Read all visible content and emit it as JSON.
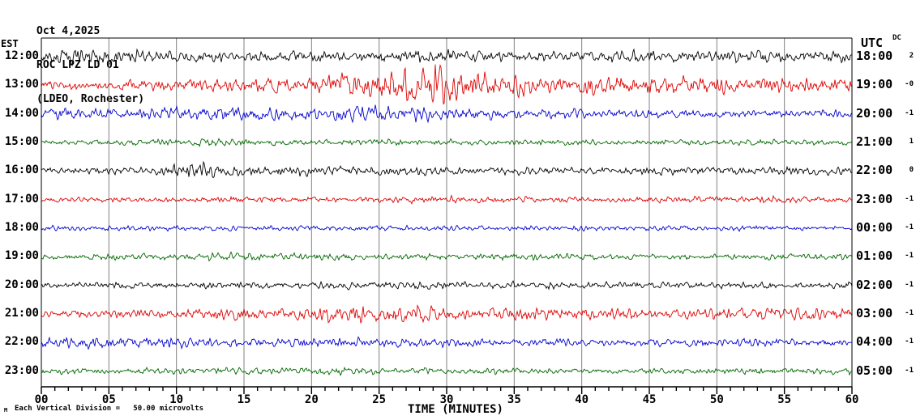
{
  "header": {
    "date": "Oct 4,2025",
    "station": "ROC LPZ LD 01",
    "location": "(LDEO, Rochester)"
  },
  "labels": {
    "left_tz": "EST",
    "right_tz": "UTC",
    "dc": "DC",
    "xlabel": "TIME (MINUTES)",
    "scale_note": "Each Vertical Division =   50.00 microvolts",
    "watermark": "M"
  },
  "chart_data": {
    "type": "line",
    "subtype": "helicorder-seismogram",
    "title": "ROC LPZ LD 01 helicorder, Oct 4,2025 (LDEO, Rochester)",
    "xlabel": "TIME (MINUTES)",
    "x_range_minutes": [
      0,
      60
    ],
    "x_major_ticks": [
      "00",
      "05",
      "10",
      "15",
      "20",
      "25",
      "30",
      "35",
      "40",
      "45",
      "50",
      "55",
      "60"
    ],
    "x_minor_tick_every_minutes": 1,
    "grid": "vertical-gray-line-every-5-minutes",
    "microvolts_per_division": 50.0,
    "grid_color": "#808080",
    "colors_cycle": [
      "#000000",
      "#dd0000",
      "#0000cc",
      "#006600"
    ],
    "rows": [
      {
        "est": "12:00",
        "utc": "18:00",
        "dc": "2",
        "color": "#000000",
        "envelope": [
          [
            0,
            7
          ],
          [
            3,
            9
          ],
          [
            6,
            8
          ],
          [
            10,
            6
          ],
          [
            14,
            7
          ],
          [
            18,
            6
          ],
          [
            22,
            6
          ],
          [
            26,
            7
          ],
          [
            29,
            8
          ],
          [
            33,
            6
          ],
          [
            38,
            6
          ],
          [
            43,
            7
          ],
          [
            48,
            6
          ],
          [
            53,
            7
          ],
          [
            57,
            6
          ],
          [
            60,
            6
          ]
        ]
      },
      {
        "est": "13:00",
        "utc": "19:00",
        "dc": "-0",
        "color": "#dd0000",
        "envelope": [
          [
            0,
            5
          ],
          [
            5,
            6
          ],
          [
            10,
            6
          ],
          [
            14,
            7
          ],
          [
            16,
            9
          ],
          [
            19,
            8
          ],
          [
            21,
            11
          ],
          [
            23,
            13
          ],
          [
            25,
            16
          ],
          [
            26,
            20
          ],
          [
            27,
            26
          ],
          [
            28,
            22
          ],
          [
            29,
            27
          ],
          [
            30,
            24
          ],
          [
            31,
            16
          ],
          [
            33,
            13
          ],
          [
            35,
            14
          ],
          [
            37,
            11
          ],
          [
            39,
            12
          ],
          [
            41,
            13
          ],
          [
            44,
            9
          ],
          [
            46,
            11
          ],
          [
            48,
            9
          ],
          [
            50,
            10
          ],
          [
            52,
            8
          ],
          [
            54,
            10
          ],
          [
            56,
            9
          ],
          [
            58,
            8
          ],
          [
            60,
            9
          ]
        ]
      },
      {
        "est": "14:00",
        "utc": "20:00",
        "dc": "-1",
        "color": "#0000cc",
        "envelope": [
          [
            0,
            7
          ],
          [
            3,
            6
          ],
          [
            6,
            5
          ],
          [
            9,
            7
          ],
          [
            12,
            8
          ],
          [
            15,
            7
          ],
          [
            17,
            8
          ],
          [
            20,
            6
          ],
          [
            23,
            8
          ],
          [
            25,
            9
          ],
          [
            27,
            9
          ],
          [
            29,
            8
          ],
          [
            31,
            6
          ],
          [
            34,
            6
          ],
          [
            37,
            5
          ],
          [
            40,
            6
          ],
          [
            44,
            5
          ],
          [
            48,
            4
          ],
          [
            52,
            4
          ],
          [
            56,
            4
          ],
          [
            60,
            5
          ]
        ]
      },
      {
        "est": "15:00",
        "utc": "21:00",
        "dc": "1",
        "color": "#006600",
        "envelope": [
          [
            0,
            3
          ],
          [
            5,
            3
          ],
          [
            10,
            4
          ],
          [
            13,
            5
          ],
          [
            16,
            4
          ],
          [
            20,
            3
          ],
          [
            25,
            3
          ],
          [
            30,
            3
          ],
          [
            35,
            4
          ],
          [
            40,
            3
          ],
          [
            45,
            3
          ],
          [
            50,
            3
          ],
          [
            55,
            4
          ],
          [
            60,
            3
          ]
        ]
      },
      {
        "est": "16:00",
        "utc": "22:00",
        "dc": "0",
        "color": "#000000",
        "envelope": [
          [
            0,
            4
          ],
          [
            4,
            4
          ],
          [
            8,
            5
          ],
          [
            10,
            8
          ],
          [
            12,
            9
          ],
          [
            14,
            7
          ],
          [
            16,
            6
          ],
          [
            19,
            6
          ],
          [
            22,
            5
          ],
          [
            25,
            5
          ],
          [
            28,
            5
          ],
          [
            32,
            4
          ],
          [
            36,
            5
          ],
          [
            40,
            4
          ],
          [
            45,
            5
          ],
          [
            50,
            4
          ],
          [
            55,
            5
          ],
          [
            60,
            4
          ]
        ]
      },
      {
        "est": "17:00",
        "utc": "23:00",
        "dc": "-1",
        "color": "#dd0000",
        "envelope": [
          [
            0,
            3
          ],
          [
            10,
            3
          ],
          [
            15,
            4
          ],
          [
            20,
            3
          ],
          [
            30,
            4
          ],
          [
            40,
            3
          ],
          [
            50,
            4
          ],
          [
            55,
            4
          ],
          [
            60,
            3
          ]
        ]
      },
      {
        "est": "18:00",
        "utc": "00:00",
        "dc": "-1",
        "color": "#0000cc",
        "envelope": [
          [
            0,
            3
          ],
          [
            10,
            3
          ],
          [
            20,
            3
          ],
          [
            30,
            3
          ],
          [
            40,
            3
          ],
          [
            50,
            3
          ],
          [
            60,
            3
          ]
        ]
      },
      {
        "est": "19:00",
        "utc": "01:00",
        "dc": "-1",
        "color": "#006600",
        "envelope": [
          [
            0,
            3
          ],
          [
            5,
            4
          ],
          [
            10,
            4
          ],
          [
            13,
            5
          ],
          [
            16,
            4
          ],
          [
            20,
            4
          ],
          [
            25,
            4
          ],
          [
            30,
            3
          ],
          [
            35,
            4
          ],
          [
            40,
            4
          ],
          [
            45,
            3
          ],
          [
            50,
            3
          ],
          [
            55,
            4
          ],
          [
            60,
            3
          ]
        ]
      },
      {
        "est": "20:00",
        "utc": "02:00",
        "dc": "-1",
        "color": "#000000",
        "envelope": [
          [
            0,
            3
          ],
          [
            5,
            4
          ],
          [
            10,
            4
          ],
          [
            15,
            4
          ],
          [
            20,
            4
          ],
          [
            25,
            4
          ],
          [
            28,
            5
          ],
          [
            32,
            4
          ],
          [
            36,
            4
          ],
          [
            40,
            4
          ],
          [
            45,
            4
          ],
          [
            50,
            4
          ],
          [
            55,
            4
          ],
          [
            60,
            4
          ]
        ]
      },
      {
        "est": "21:00",
        "utc": "03:00",
        "dc": "-1",
        "color": "#dd0000",
        "envelope": [
          [
            0,
            4
          ],
          [
            4,
            4
          ],
          [
            8,
            6
          ],
          [
            11,
            5
          ],
          [
            13,
            7
          ],
          [
            15,
            8
          ],
          [
            17,
            6
          ],
          [
            20,
            7
          ],
          [
            22,
            9
          ],
          [
            24,
            10
          ],
          [
            26,
            9
          ],
          [
            28,
            11
          ],
          [
            29,
            9
          ],
          [
            31,
            6
          ],
          [
            33,
            7
          ],
          [
            35,
            8
          ],
          [
            37,
            6
          ],
          [
            40,
            7
          ],
          [
            42,
            8
          ],
          [
            44,
            7
          ],
          [
            46,
            6
          ],
          [
            48,
            7
          ],
          [
            50,
            6
          ],
          [
            52,
            7
          ],
          [
            54,
            8
          ],
          [
            56,
            9
          ],
          [
            58,
            7
          ],
          [
            60,
            8
          ]
        ]
      },
      {
        "est": "22:00",
        "utc": "04:00",
        "dc": "-1",
        "color": "#0000cc",
        "envelope": [
          [
            0,
            6
          ],
          [
            3,
            7
          ],
          [
            6,
            7
          ],
          [
            9,
            6
          ],
          [
            12,
            5
          ],
          [
            15,
            5
          ],
          [
            18,
            5
          ],
          [
            22,
            5
          ],
          [
            26,
            5
          ],
          [
            30,
            5
          ],
          [
            34,
            4
          ],
          [
            38,
            5
          ],
          [
            42,
            4
          ],
          [
            46,
            4
          ],
          [
            50,
            5
          ],
          [
            54,
            4
          ],
          [
            58,
            5
          ],
          [
            60,
            4
          ]
        ]
      },
      {
        "est": "23:00",
        "utc": "05:00",
        "dc": "-1",
        "color": "#006600",
        "envelope": [
          [
            0,
            4
          ],
          [
            5,
            3
          ],
          [
            10,
            4
          ],
          [
            15,
            4
          ],
          [
            20,
            4
          ],
          [
            25,
            4
          ],
          [
            30,
            3
          ],
          [
            35,
            4
          ],
          [
            40,
            3
          ],
          [
            45,
            3
          ],
          [
            50,
            3
          ],
          [
            55,
            4
          ],
          [
            60,
            4
          ]
        ]
      }
    ]
  }
}
